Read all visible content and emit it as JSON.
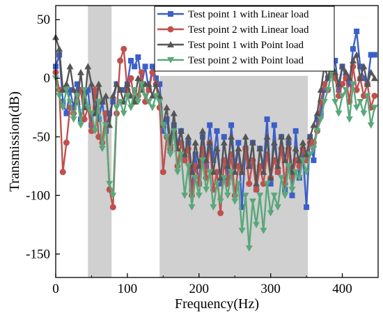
{
  "chart_data": {
    "type": "line",
    "title": "",
    "xlabel": "Frequency(Hz)",
    "ylabel": "Transmission(dB)",
    "xlim": [
      0,
      450
    ],
    "ylim": [
      -170,
      62
    ],
    "x_ticks": [
      0,
      100,
      200,
      300,
      400
    ],
    "y_ticks": [
      50,
      0,
      -50,
      -100,
      -150
    ],
    "grid": false,
    "legend_position": "top-right",
    "shaded_regions": [
      {
        "x": [
          45,
          78
        ],
        "y": [
          -170,
          63
        ]
      },
      {
        "x": [
          145,
          352
        ],
        "y": [
          -170,
          2
        ]
      }
    ],
    "series": [
      {
        "name": "Test point 1 with Linear load",
        "color": "#3b5fc9",
        "marker": "square",
        "x": [
          0,
          5,
          10,
          15,
          20,
          25,
          30,
          35,
          40,
          45,
          50,
          55,
          60,
          65,
          70,
          75,
          80,
          85,
          90,
          95,
          100,
          105,
          110,
          115,
          120,
          125,
          130,
          135,
          140,
          145,
          150,
          155,
          160,
          165,
          170,
          175,
          180,
          185,
          190,
          195,
          200,
          205,
          210,
          215,
          220,
          225,
          230,
          235,
          240,
          245,
          250,
          255,
          260,
          265,
          270,
          275,
          280,
          285,
          290,
          295,
          300,
          305,
          310,
          315,
          320,
          325,
          330,
          335,
          340,
          345,
          350,
          355,
          360,
          365,
          370,
          375,
          380,
          385,
          390,
          395,
          400,
          405,
          410,
          415,
          420,
          425,
          430,
          435,
          440,
          445
        ],
        "y": [
          10,
          20,
          -20,
          -30,
          -10,
          -25,
          -5,
          -35,
          -20,
          -10,
          -40,
          -15,
          -35,
          -20,
          -45,
          -30,
          -20,
          -5,
          -10,
          -10,
          -5,
          15,
          10,
          18,
          -5,
          10,
          -10,
          10,
          0,
          -5,
          -45,
          -35,
          -60,
          -40,
          -55,
          -45,
          -70,
          -55,
          -95,
          -65,
          -90,
          -50,
          -75,
          -40,
          -70,
          -45,
          -90,
          -50,
          -85,
          -40,
          -75,
          -55,
          -110,
          -60,
          -75,
          -55,
          -95,
          -60,
          -75,
          -35,
          -90,
          -40,
          -80,
          -50,
          -95,
          -55,
          -100,
          -45,
          -85,
          -65,
          -110,
          -50,
          -70,
          -35,
          -30,
          -10,
          0,
          10,
          15,
          -10,
          10,
          0,
          -5,
          25,
          40,
          10,
          0,
          -5,
          20,
          20
        ]
      },
      {
        "name": "Test point 2 with Linear load",
        "color": "#c0504d",
        "marker": "circle",
        "x": [
          0,
          5,
          10,
          15,
          20,
          25,
          30,
          35,
          40,
          45,
          50,
          55,
          60,
          65,
          70,
          75,
          80,
          85,
          90,
          95,
          100,
          105,
          110,
          115,
          120,
          125,
          130,
          135,
          140,
          145,
          150,
          155,
          160,
          165,
          170,
          175,
          180,
          185,
          190,
          195,
          200,
          205,
          210,
          215,
          220,
          225,
          230,
          235,
          240,
          245,
          250,
          255,
          260,
          265,
          270,
          275,
          280,
          285,
          290,
          295,
          300,
          305,
          310,
          315,
          320,
          325,
          330,
          335,
          340,
          345,
          350,
          355,
          360,
          365,
          370,
          375,
          380,
          385,
          390,
          395,
          400,
          405,
          410,
          415,
          420,
          425,
          430,
          435,
          440,
          445
        ],
        "y": [
          5,
          -10,
          -80,
          -55,
          -25,
          -30,
          -20,
          -10,
          -35,
          -25,
          -45,
          -10,
          -50,
          -55,
          -30,
          -95,
          -110,
          -30,
          15,
          25,
          -10,
          0,
          -20,
          -15,
          5,
          -20,
          -10,
          5,
          -5,
          -25,
          -80,
          -50,
          -60,
          -45,
          -75,
          -55,
          -70,
          -60,
          -100,
          -75,
          -90,
          -60,
          -85,
          -55,
          -95,
          -80,
          -115,
          -70,
          -90,
          -65,
          -100,
          -75,
          -80,
          -60,
          -90,
          -70,
          -95,
          -75,
          -90,
          -65,
          -85,
          -70,
          -80,
          -60,
          -90,
          -60,
          -85,
          -70,
          -75,
          -60,
          -70,
          -55,
          -55,
          -45,
          -20,
          -5,
          -10,
          5,
          0,
          -15,
          -5,
          0,
          -20,
          10,
          -10,
          0,
          -15,
          -5,
          -25,
          -15
        ]
      },
      {
        "name": "Test point 1 with Point load",
        "color": "#555555",
        "marker": "triangle-up",
        "x": [
          0,
          5,
          10,
          15,
          20,
          25,
          30,
          35,
          40,
          45,
          50,
          55,
          60,
          65,
          70,
          75,
          80,
          85,
          90,
          95,
          100,
          105,
          110,
          115,
          120,
          125,
          130,
          135,
          140,
          145,
          150,
          155,
          160,
          165,
          170,
          175,
          180,
          185,
          190,
          195,
          200,
          205,
          210,
          215,
          220,
          225,
          230,
          235,
          240,
          245,
          250,
          255,
          260,
          265,
          270,
          275,
          280,
          285,
          290,
          295,
          300,
          305,
          310,
          315,
          320,
          325,
          330,
          335,
          340,
          345,
          350,
          355,
          360,
          365,
          370,
          375,
          380,
          385,
          390,
          395,
          400,
          405,
          410,
          415,
          420,
          425,
          430,
          435,
          440,
          445
        ],
        "y": [
          35,
          25,
          -10,
          -5,
          10,
          -10,
          -20,
          5,
          -25,
          10,
          -5,
          -30,
          -5,
          -20,
          -15,
          -40,
          -15,
          -5,
          -10,
          -20,
          -5,
          -15,
          -20,
          0,
          -10,
          -5,
          -5,
          -15,
          -5,
          -15,
          -40,
          -25,
          -55,
          -30,
          -60,
          -45,
          -65,
          -50,
          -80,
          -55,
          -75,
          -45,
          -70,
          -55,
          -80,
          -60,
          -85,
          -55,
          -75,
          -50,
          -80,
          -60,
          -80,
          -50,
          -75,
          -55,
          -90,
          -60,
          -80,
          -50,
          -85,
          -55,
          -75,
          -50,
          -70,
          -50,
          -80,
          -60,
          -70,
          -55,
          -65,
          -50,
          -40,
          -30,
          -10,
          10,
          0,
          15,
          5,
          -5,
          10,
          5,
          0,
          15,
          20,
          0,
          10,
          -5,
          5,
          0
        ]
      },
      {
        "name": "Test point 2 with Point load",
        "color": "#5aa77a",
        "marker": "triangle-down",
        "x": [
          0,
          5,
          10,
          15,
          20,
          25,
          30,
          35,
          40,
          45,
          50,
          55,
          60,
          65,
          70,
          75,
          80,
          85,
          90,
          95,
          100,
          105,
          110,
          115,
          120,
          125,
          130,
          135,
          140,
          145,
          150,
          155,
          160,
          165,
          170,
          175,
          180,
          185,
          190,
          195,
          200,
          205,
          210,
          215,
          220,
          225,
          230,
          235,
          240,
          245,
          250,
          255,
          260,
          265,
          270,
          275,
          280,
          285,
          290,
          295,
          300,
          305,
          310,
          315,
          320,
          325,
          330,
          335,
          340,
          345,
          350,
          355,
          360,
          365,
          370,
          375,
          380,
          385,
          390,
          395,
          400,
          405,
          410,
          415,
          420,
          425,
          430,
          435,
          440,
          445
        ],
        "y": [
          0,
          -15,
          -25,
          -10,
          -20,
          -35,
          -15,
          -40,
          -10,
          -25,
          -30,
          -45,
          -20,
          -60,
          -40,
          -90,
          -100,
          -25,
          -20,
          -30,
          -15,
          -25,
          -10,
          -20,
          -5,
          -15,
          -20,
          -25,
          -15,
          -20,
          -40,
          -50,
          -65,
          -45,
          -80,
          -65,
          -100,
          -75,
          -110,
          -85,
          -100,
          -70,
          -95,
          -80,
          -110,
          -90,
          -105,
          -85,
          -100,
          -80,
          -105,
          -90,
          -130,
          -100,
          -145,
          -105,
          -125,
          -100,
          -130,
          -90,
          -115,
          -100,
          -110,
          -85,
          -100,
          -75,
          -95,
          -80,
          -85,
          -70,
          -80,
          -65,
          -60,
          -45,
          -35,
          -20,
          -10,
          5,
          -20,
          -30,
          -15,
          -10,
          -35,
          -5,
          -25,
          -20,
          -30,
          -15,
          -40,
          -25
        ]
      }
    ]
  }
}
